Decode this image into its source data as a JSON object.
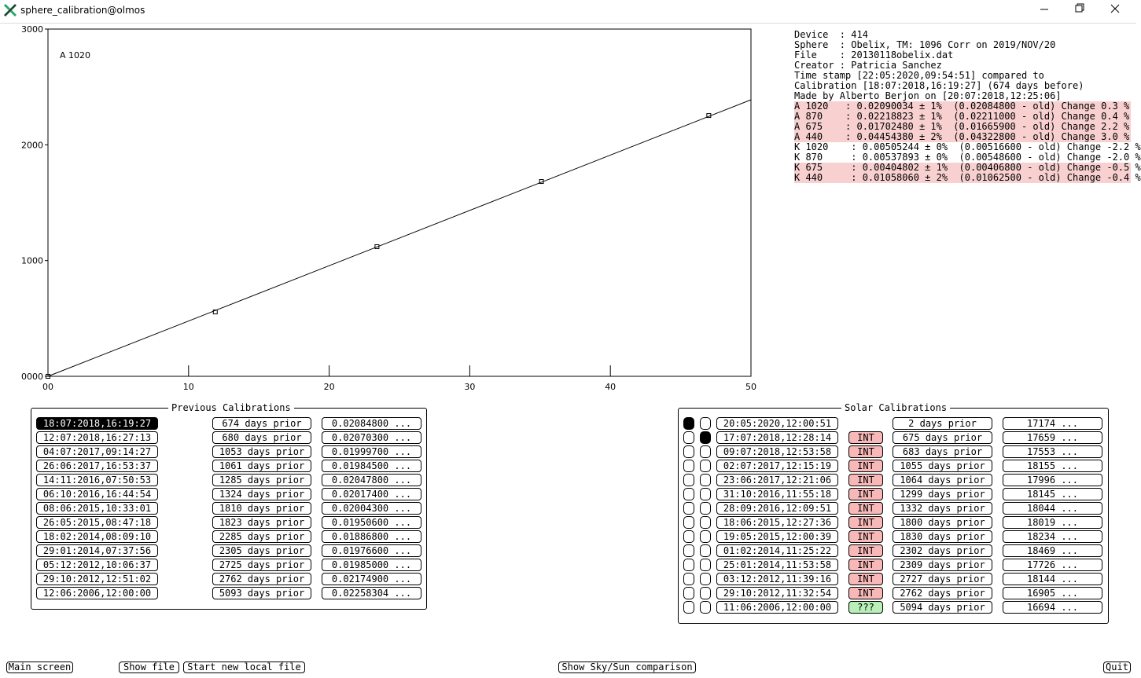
{
  "window": {
    "title": "sphere_calibration@olmos"
  },
  "chart": {
    "type": "line",
    "annotation": "A 1020",
    "xlim": [
      0,
      50
    ],
    "xticks": [
      {
        "value": 0,
        "label": "00"
      },
      10,
      20,
      30,
      40,
      50
    ],
    "ylim": [
      0,
      3000
    ],
    "yticks": [
      {
        "value": 0,
        "label": "0000"
      },
      1000,
      2000,
      3000
    ],
    "points": {
      "x": [
        0,
        11.9,
        23.4,
        35.1,
        47.0
      ],
      "values": [
        0,
        556,
        1120,
        1683,
        2253
      ]
    },
    "fit": {
      "x": [
        0,
        50
      ],
      "values": [
        0,
        2389
      ]
    },
    "color": "#000000"
  },
  "info": [
    {
      "text": "Device  : 414",
      "highlight": false
    },
    {
      "text": "Sphere  : Obelix, TM: 1096 Corr on 2019/NOV/20",
      "highlight": false
    },
    {
      "text": "File    : 20130118obelix.dat",
      "highlight": false
    },
    {
      "text": "Creator : Patricia Sanchez",
      "highlight": false
    },
    {
      "text": "Time stamp [22:05:2020,09:54:51] compared to",
      "highlight": false
    },
    {
      "text": "Calibration [18:07:2018,16:19:27] (674 days before)",
      "highlight": false
    },
    {
      "text": "Made by Alberto Berjon on [20:07:2018,12:25:06]",
      "highlight": false
    },
    {
      "text": "A 1020   : 0.02090034 ± 1%  (0.02084800 - old) Change 0.3 %",
      "highlight": true
    },
    {
      "text": "A 870    : 0.02218823 ± 1%  (0.02211000 - old) Change 0.4 %",
      "highlight": true
    },
    {
      "text": "A 675    : 0.01702480 ± 1%  (0.01665900 - old) Change 2.2 %",
      "highlight": true
    },
    {
      "text": "A 440    : 0.04454380 ± 2%  (0.04322800 - old) Change 3.0 %",
      "highlight": true
    },
    {
      "text": "K 1020    : 0.00505244 ± 0%  (0.00516600 - old) Change -2.2 %",
      "highlight": false
    },
    {
      "text": "K 870     : 0.00537893 ± 0%  (0.00548600 - old) Change -2.0 %",
      "highlight": false
    },
    {
      "text": "K 675     : 0.00404802 ± 1%  (0.00406800 - old) Change -0.5 %",
      "highlight": true
    },
    {
      "text": "K 440     : 0.01058060 ± 2%  (0.01062500 - old) Change -0.4 %",
      "highlight": true
    }
  ],
  "previous": {
    "title": "Previous Calibrations",
    "ellipsis": "...",
    "selected": 0,
    "rows": [
      [
        "18:07:2018,16:19:27",
        "674 days prior",
        "0.02084800"
      ],
      [
        "12:07:2018,16:27:13",
        "680 days prior",
        "0.02070300"
      ],
      [
        "04:07:2017,09:14:27",
        "1053 days prior",
        "0.01999700"
      ],
      [
        "26:06:2017,16:53:37",
        "1061 days prior",
        "0.01984500"
      ],
      [
        "14:11:2016,07:50:53",
        "1285 days prior",
        "0.02047800"
      ],
      [
        "06:10:2016,16:44:54",
        "1324 days prior",
        "0.02017400"
      ],
      [
        "08:06:2015,10:33:01",
        "1810 days prior",
        "0.02004300"
      ],
      [
        "26:05:2015,08:47:18",
        "1823 days prior",
        "0.01950600"
      ],
      [
        "18:02:2014,08:09:10",
        "2285 days prior",
        "0.01886800"
      ],
      [
        "29:01:2014,07:37:56",
        "2305 days prior",
        "0.01976600"
      ],
      [
        "05:12:2012,10:06:37",
        "2725 days prior",
        "0.01985000"
      ],
      [
        "29:10:2012,12:51:02",
        "2762 days prior",
        "0.02174900"
      ],
      [
        "12:06:2006,12:00:00",
        "5093 days prior",
        "0.02258304"
      ]
    ]
  },
  "solar": {
    "title": "Solar Calibrations",
    "ellipsis": "...",
    "checked_a": 0,
    "checked_b": 1,
    "rows": [
      [
        "20:05:2020,12:00:51",
        "",
        "2 days prior",
        "17174"
      ],
      [
        "17:07:2018,12:28:14",
        "INT",
        "675 days prior",
        "17659"
      ],
      [
        "09:07:2018,12:53:58",
        "INT",
        "683 days prior",
        "17553"
      ],
      [
        "02:07:2017,12:15:19",
        "INT",
        "1055 days prior",
        "18155"
      ],
      [
        "23:06:2017,12:21:06",
        "INT",
        "1064 days prior",
        "17996"
      ],
      [
        "31:10:2016,11:55:18",
        "INT",
        "1299 days prior",
        "18145"
      ],
      [
        "28:09:2016,12:09:51",
        "INT",
        "1332 days prior",
        "18044"
      ],
      [
        "18:06:2015,12:27:36",
        "INT",
        "1800 days prior",
        "18019"
      ],
      [
        "19:05:2015,12:00:39",
        "INT",
        "1830 days prior",
        "18234"
      ],
      [
        "01:02:2014,11:25:22",
        "INT",
        "2302 days prior",
        "18469"
      ],
      [
        "25:01:2014,11:53:58",
        "INT",
        "2309 days prior",
        "17726"
      ],
      [
        "03:12:2012,11:39:16",
        "INT",
        "2727 days prior",
        "18144"
      ],
      [
        "29:10:2012,11:32:54",
        "INT",
        "2762 days prior",
        "16905"
      ],
      [
        "11:06:2006,12:00:00",
        "???",
        "5094 days prior",
        "16694"
      ]
    ]
  },
  "buttons": [
    "Main screen",
    "Show file",
    "Start new local file",
    "Show Sky/Sun comparison",
    "Quit"
  ]
}
